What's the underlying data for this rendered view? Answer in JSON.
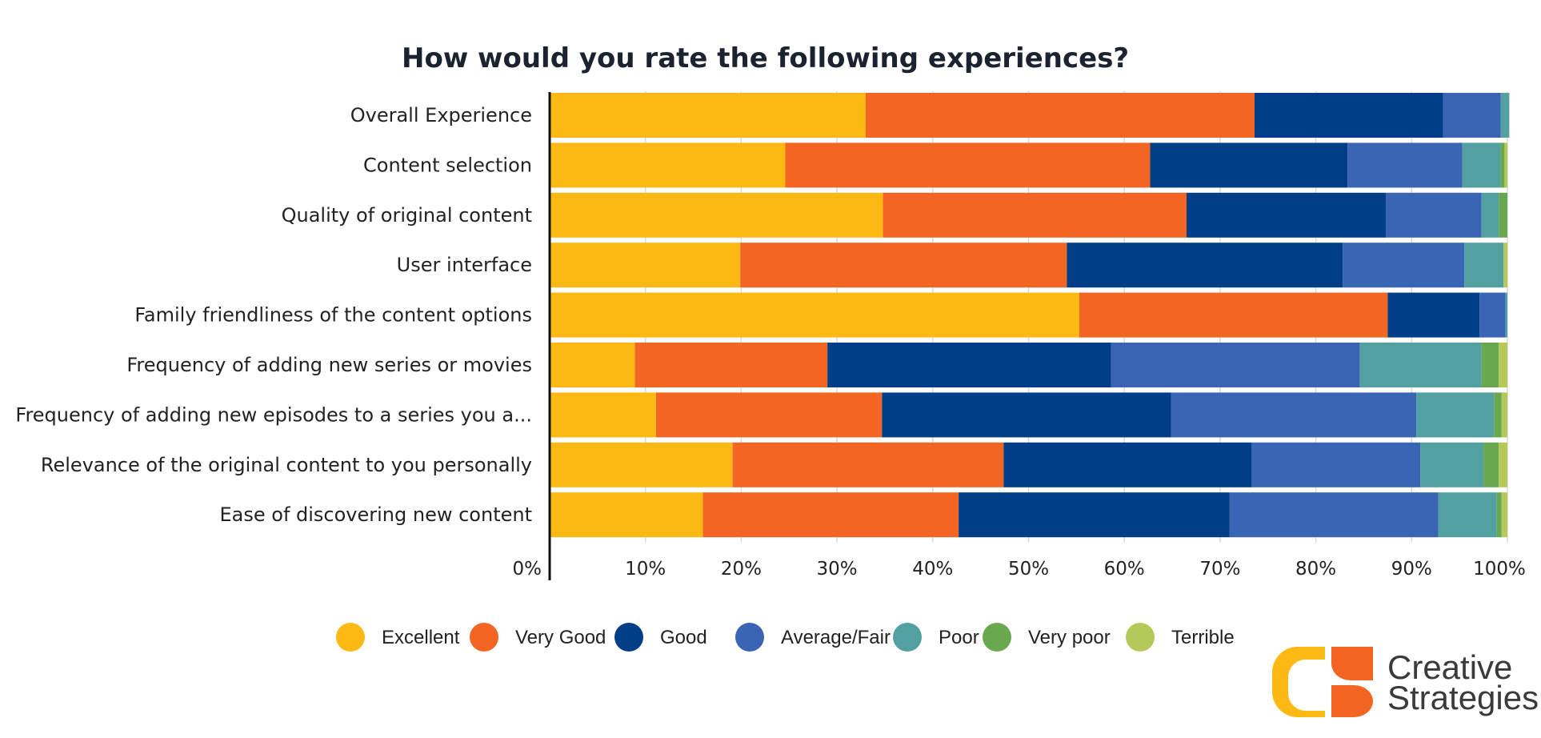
{
  "chart_data": {
    "type": "bar",
    "orientation": "horizontal",
    "stacked": "100%",
    "title": "How would you rate the following experiences?",
    "categories": [
      "Overall Experience",
      "Content selection",
      "Quality of original content",
      "User interface",
      "Family friendliness of the content options",
      "Frequency of adding new series or movies",
      "Frequency of adding new episodes to a series you a...",
      "Relevance of the original content to you personally",
      "Ease of discovering new content"
    ],
    "series": [
      {
        "name": "Excellent",
        "color": "#FDB913",
        "values": [
          33,
          24.6,
          34.8,
          19.9,
          55.3,
          8.9,
          11.1,
          19.1,
          16.0
        ]
      },
      {
        "name": "Very Good",
        "color": "#F26522",
        "values": [
          40.6,
          38.1,
          31.7,
          34.1,
          32.2,
          20.1,
          23.6,
          28.3,
          26.7
        ]
      },
      {
        "name": "Good",
        "color": "#003F87",
        "values": [
          19.7,
          20.6,
          20.8,
          28.8,
          9.6,
          29.6,
          30.2,
          25.9,
          28.3
        ]
      },
      {
        "name": "Average/Fair",
        "color": "#3A64B4",
        "values": [
          6.0,
          12.0,
          10.0,
          12.7,
          2.7,
          26.0,
          25.6,
          17.6,
          21.8
        ]
      },
      {
        "name": "Poor",
        "color": "#52A0A0",
        "values": [
          0.9,
          4.0,
          1.8,
          4.1,
          0.2,
          12.7,
          8.1,
          6.6,
          6.1
        ]
      },
      {
        "name": "Very poor",
        "color": "#6AA84F",
        "values": [
          0,
          0.4,
          0.9,
          0.0,
          0,
          1.8,
          0.8,
          1.6,
          0.5
        ]
      },
      {
        "name": "Terrible",
        "color": "#B5C95B",
        "values": [
          0,
          0.3,
          0,
          0.4,
          0,
          0.9,
          0.6,
          0.9,
          0.6
        ]
      }
    ],
    "xlim": [
      0,
      100
    ],
    "xticks": [
      "0%",
      "10%",
      "20%",
      "30%",
      "40%",
      "50%",
      "60%",
      "70%",
      "80%",
      "90%",
      "100%"
    ],
    "grid": true,
    "legend_position": "bottom"
  },
  "logo": {
    "line1": "Creative",
    "line2": "Strategies",
    "colors": [
      "#FDB913",
      "#F26522"
    ]
  }
}
